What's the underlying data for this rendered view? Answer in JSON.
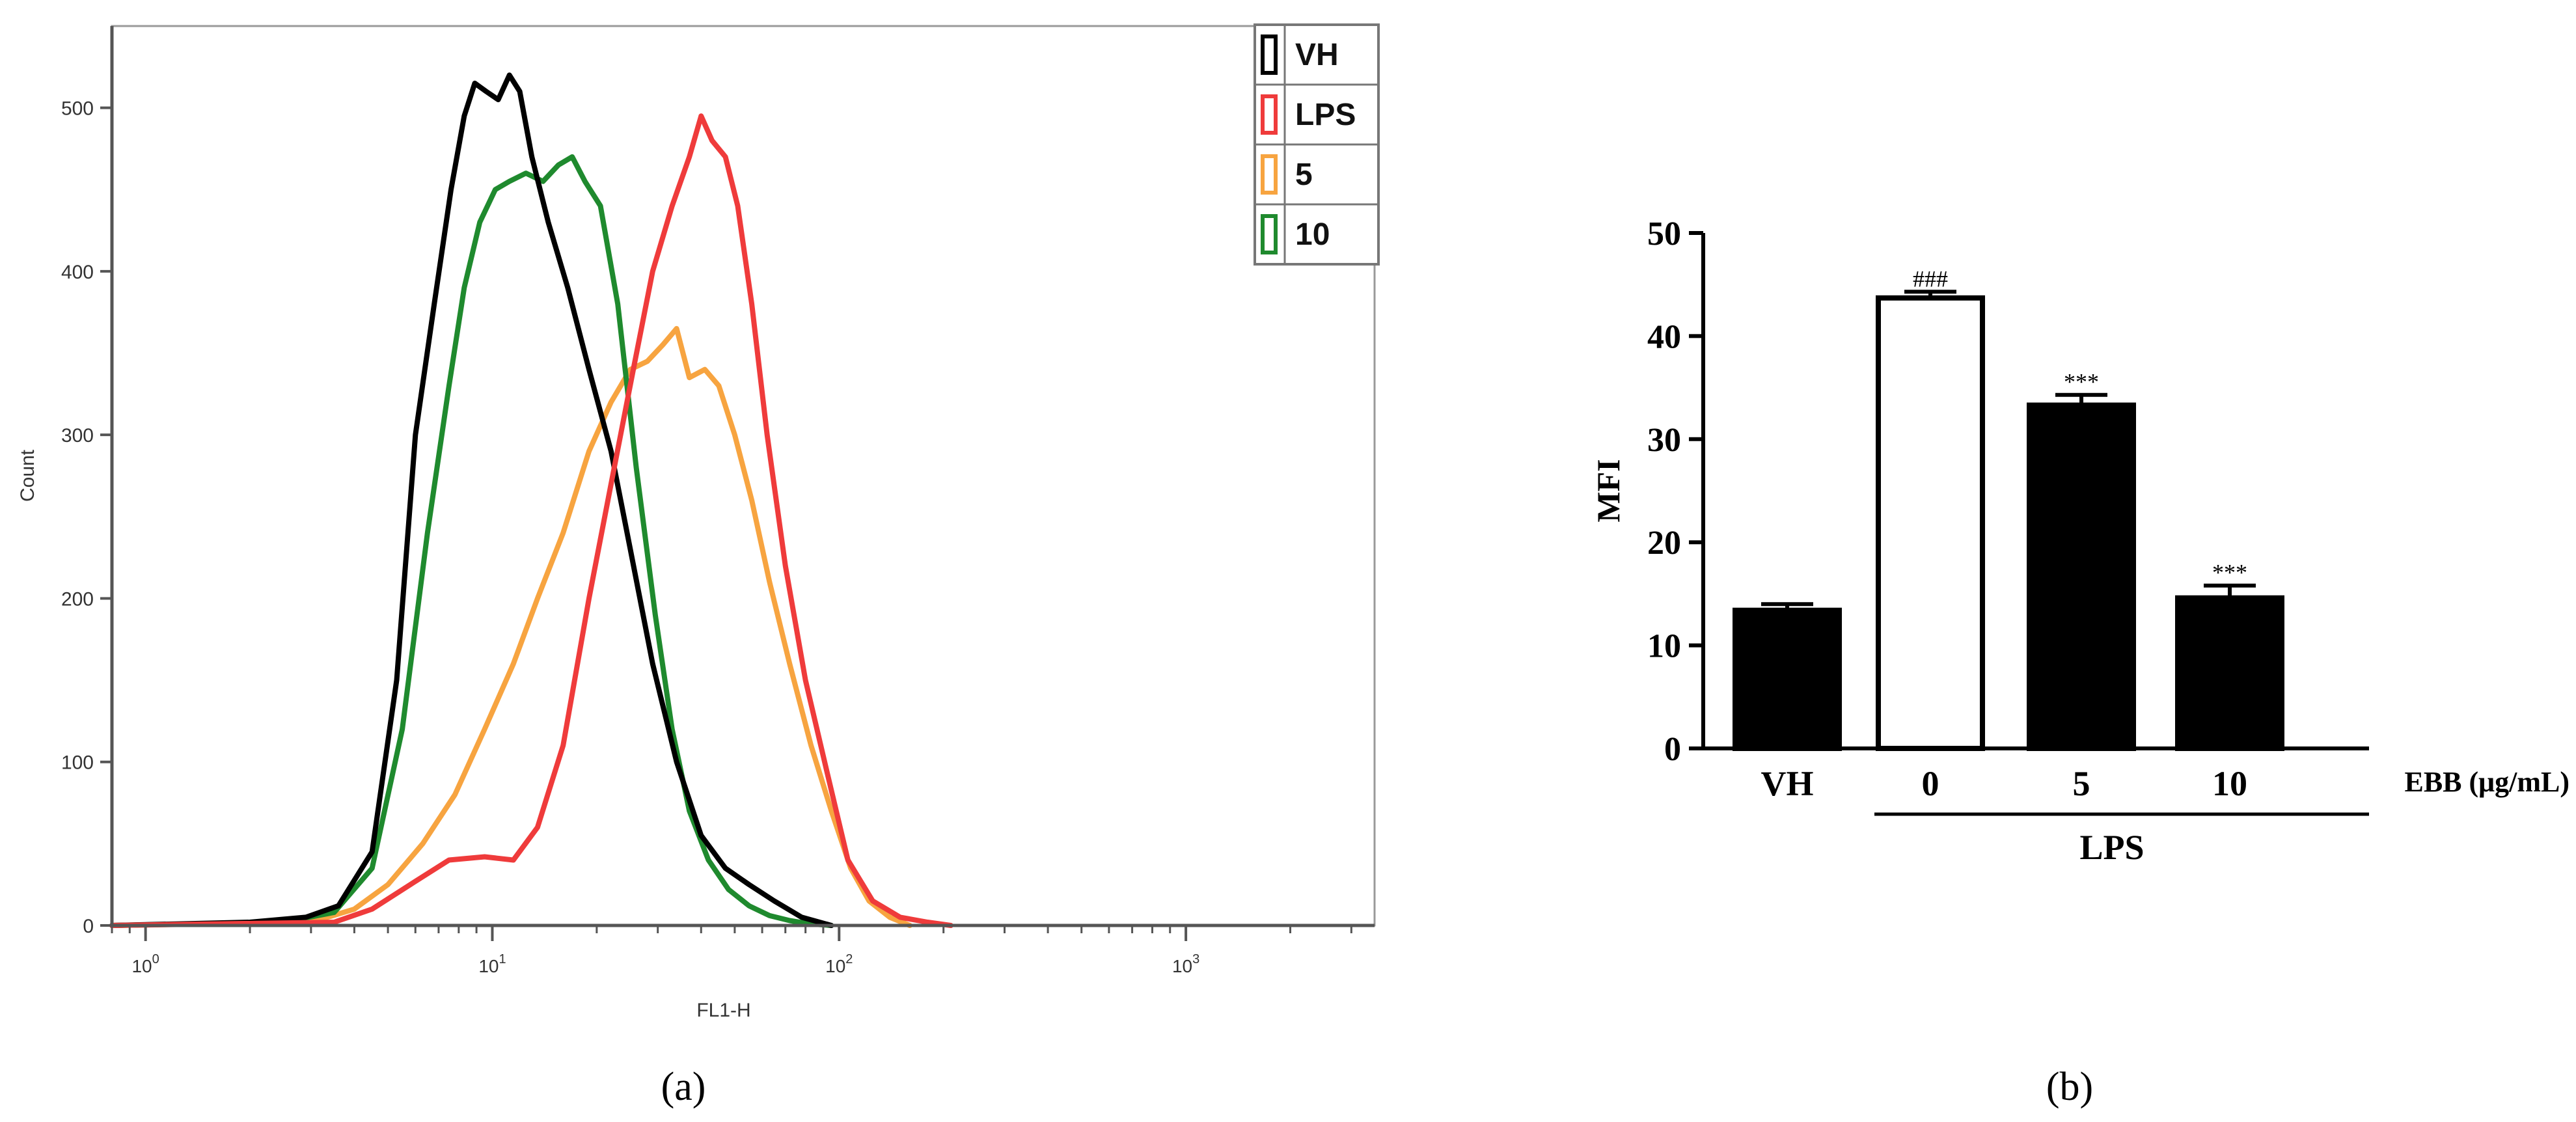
{
  "panel_a_label": "(a)",
  "panel_b_label": "(b)",
  "chart_data": [
    {
      "id": "histogram",
      "type": "line",
      "xlabel": "FL1-H",
      "ylabel": "Count",
      "xscale": "log",
      "xlim": [
        0.8,
        3500
      ],
      "ylim": [
        0,
        550
      ],
      "yticks": [
        0,
        100,
        200,
        300,
        400,
        500
      ],
      "xticks": [
        {
          "value": 1,
          "base": "10",
          "exp": "0"
        },
        {
          "value": 10,
          "base": "10",
          "exp": "1"
        },
        {
          "value": 100,
          "base": "10",
          "exp": "2"
        },
        {
          "value": 1000,
          "base": "10",
          "exp": "3"
        }
      ],
      "legend_position": "top-right",
      "grid": false,
      "series": [
        {
          "name": "VH",
          "color": "#000000",
          "x": [
            0.8,
            2.0,
            2.9,
            3.6,
            4.5,
            5.3,
            6.0,
            6.8,
            7.6,
            8.3,
            8.9,
            9.6,
            10.4,
            11.2,
            12.0,
            13.0,
            14.5,
            16.5,
            19.0,
            22.0,
            25.0,
            29.0,
            34.0,
            40.0,
            47.0,
            55.0,
            65.0,
            78.0,
            95.0
          ],
          "y": [
            0,
            2,
            5,
            12,
            45,
            150,
            300,
            380,
            450,
            495,
            515,
            510,
            505,
            520,
            510,
            470,
            430,
            390,
            340,
            290,
            230,
            160,
            100,
            55,
            35,
            25,
            15,
            5,
            0
          ]
        },
        {
          "name": "LPS",
          "color": "#ef3b3b",
          "x": [
            0.8,
            3.5,
            4.5,
            5.8,
            7.5,
            9.5,
            11.5,
            13.5,
            16.0,
            19.0,
            22.0,
            25.5,
            29.0,
            33.0,
            37.0,
            40.0,
            43.0,
            47.0,
            51.0,
            56.0,
            62.0,
            70.0,
            80.0,
            92.0,
            106.0,
            125.0,
            150.0,
            180.0,
            210.0
          ],
          "y": [
            0,
            2,
            10,
            25,
            40,
            42,
            40,
            60,
            110,
            200,
            270,
            340,
            400,
            440,
            470,
            495,
            480,
            470,
            440,
            380,
            300,
            220,
            150,
            95,
            40,
            15,
            5,
            2,
            0
          ]
        },
        {
          "name": "5",
          "color": "#f7a440",
          "x": [
            0.8,
            3.0,
            4.0,
            5.0,
            6.3,
            7.8,
            9.5,
            11.5,
            13.5,
            16.0,
            19.0,
            22.0,
            25.0,
            28.0,
            31.0,
            34.0,
            37.0,
            41.0,
            45.0,
            50.0,
            56.0,
            63.0,
            72.0,
            83.0,
            95.0,
            108.0,
            122.0,
            140.0,
            160.0
          ],
          "y": [
            0,
            2,
            10,
            25,
            50,
            80,
            120,
            160,
            200,
            240,
            290,
            320,
            340,
            345,
            355,
            365,
            335,
            340,
            330,
            300,
            260,
            210,
            160,
            110,
            70,
            35,
            15,
            5,
            0
          ]
        },
        {
          "name": "10",
          "color": "#1f8a2e",
          "x": [
            0.8,
            2.5,
            3.5,
            4.5,
            5.5,
            6.5,
            7.5,
            8.3,
            9.2,
            10.2,
            11.2,
            12.5,
            14.0,
            15.5,
            17.0,
            18.5,
            20.5,
            23.0,
            26.0,
            29.5,
            33.0,
            37.0,
            42.0,
            48.0,
            55.0,
            63.0,
            72.0,
            82.0,
            95.0
          ],
          "y": [
            0,
            2,
            8,
            35,
            120,
            240,
            330,
            390,
            430,
            450,
            455,
            460,
            455,
            465,
            470,
            455,
            440,
            380,
            280,
            190,
            120,
            70,
            40,
            22,
            12,
            6,
            3,
            1,
            0
          ]
        }
      ]
    },
    {
      "id": "bar",
      "type": "bar",
      "ylabel": "MFI",
      "ylim": [
        0,
        50
      ],
      "yticks": [
        0,
        10,
        20,
        30,
        40,
        50
      ],
      "categories": [
        "VH",
        "0",
        "5",
        "10"
      ],
      "values": [
        13.4,
        43.7,
        33.3,
        14.6
      ],
      "errors": [
        0.6,
        0.6,
        1.0,
        1.2
      ],
      "bar_colors": [
        "#000000",
        "#ffffff",
        "#000000",
        "#000000"
      ],
      "annotations": [
        "",
        "###",
        "***",
        "***"
      ],
      "x_suffix": "EBB (μg/mL)",
      "group_label": "LPS"
    }
  ]
}
